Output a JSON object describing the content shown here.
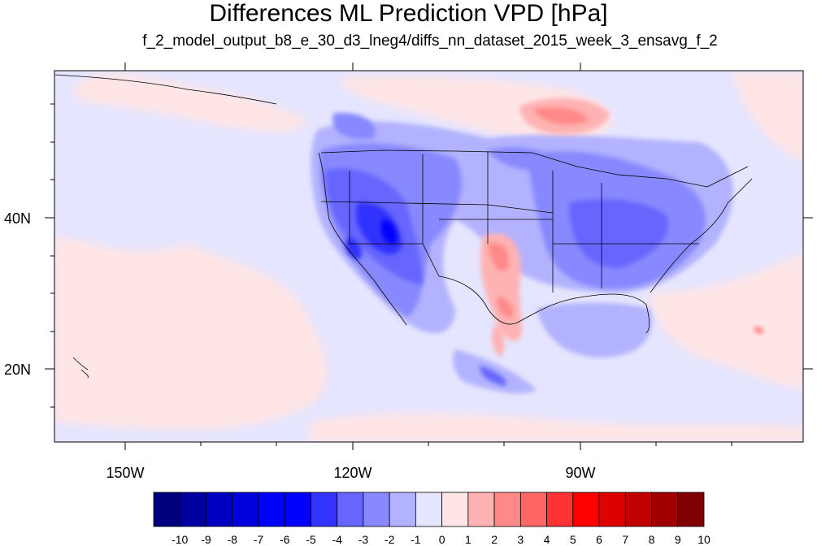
{
  "title": "Differences ML Prediction VPD [hPa]",
  "subtitle": "f_2_model_output_b8_e_30_d3_lneg4/diffs_nn_dataset_2015_week_3_ensavg_f_2",
  "map": {
    "lon_ticks": [
      "150W",
      "120W",
      "90W"
    ],
    "lat_ticks": [
      "40N",
      "20N"
    ],
    "background_field_color": "#e5e5ff",
    "coastline_color": "#000000"
  },
  "colorbar": {
    "labels": [
      "-10",
      "-9",
      "-8",
      "-7",
      "-6",
      "-5",
      "-4",
      "-3",
      "-2",
      "-1",
      "0",
      "1",
      "2",
      "3",
      "4",
      "5",
      "6",
      "7",
      "8",
      "9",
      "10"
    ],
    "colors": [
      "#00007f",
      "#0000a0",
      "#0000c0",
      "#0000df",
      "#0000ff",
      "#0000ff",
      "#3333ff",
      "#6666ff",
      "#8888ff",
      "#b2b2ff",
      "#e5e5ff",
      "#ffe5e5",
      "#ffb2b2",
      "#ff8888",
      "#ff6666",
      "#ff3333",
      "#ff0000",
      "#df0000",
      "#c00000",
      "#a00000",
      "#7f0000"
    ]
  },
  "field_patches": [
    {
      "region": "west-us-negative",
      "color": "#8888ff"
    },
    {
      "region": "southwest-strong-negative",
      "color": "#3333ff"
    },
    {
      "region": "texas-positive",
      "color": "#ff8888"
    },
    {
      "region": "hudson-positive",
      "color": "#ff8888"
    },
    {
      "region": "east-us-negative",
      "color": "#8888ff"
    },
    {
      "region": "ocean-slight-positive",
      "color": "#ffe5e5"
    },
    {
      "region": "gulf-negative",
      "color": "#b2b2ff"
    },
    {
      "region": "mexico-negative",
      "color": "#6666ff"
    }
  ]
}
